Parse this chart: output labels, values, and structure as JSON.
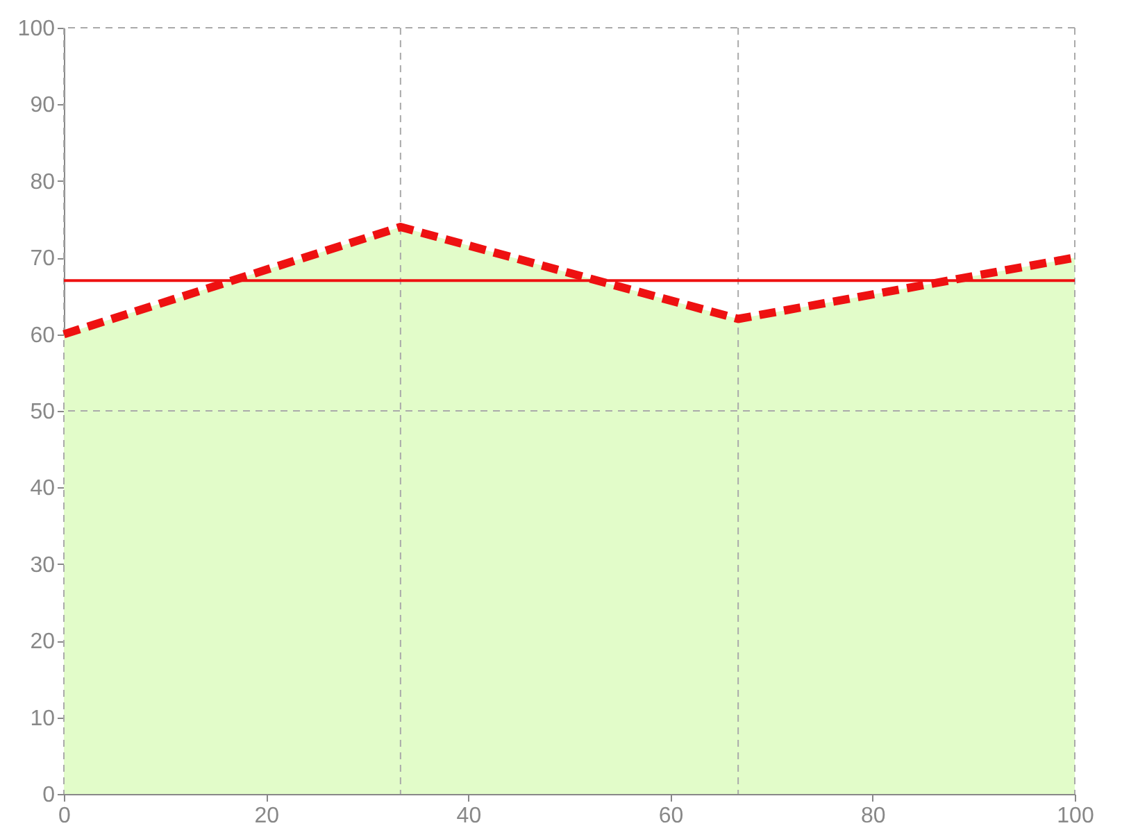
{
  "chart_data": {
    "type": "area",
    "x": [
      0,
      33.3,
      66.7,
      100
    ],
    "series": [
      {
        "color": "#e2fcc9",
        "values": [
          60,
          74,
          62,
          70
        ]
      },
      {
        "type": "line",
        "color": "#ee1111",
        "line_style": "dashed",
        "values": [
          60,
          74,
          62,
          70
        ]
      }
    ],
    "ref_lines": [
      {
        "axis": "y",
        "value": 67,
        "color": "#ee1111",
        "line_style": "solid"
      }
    ],
    "xlim": [
      0,
      100
    ],
    "xticks": [
      0,
      20,
      40,
      60,
      80,
      100
    ],
    "ylim": [
      0,
      100
    ],
    "yticks": [
      0,
      10,
      20,
      30,
      40,
      50,
      60,
      70,
      80,
      90,
      100
    ],
    "grid": true
  }
}
